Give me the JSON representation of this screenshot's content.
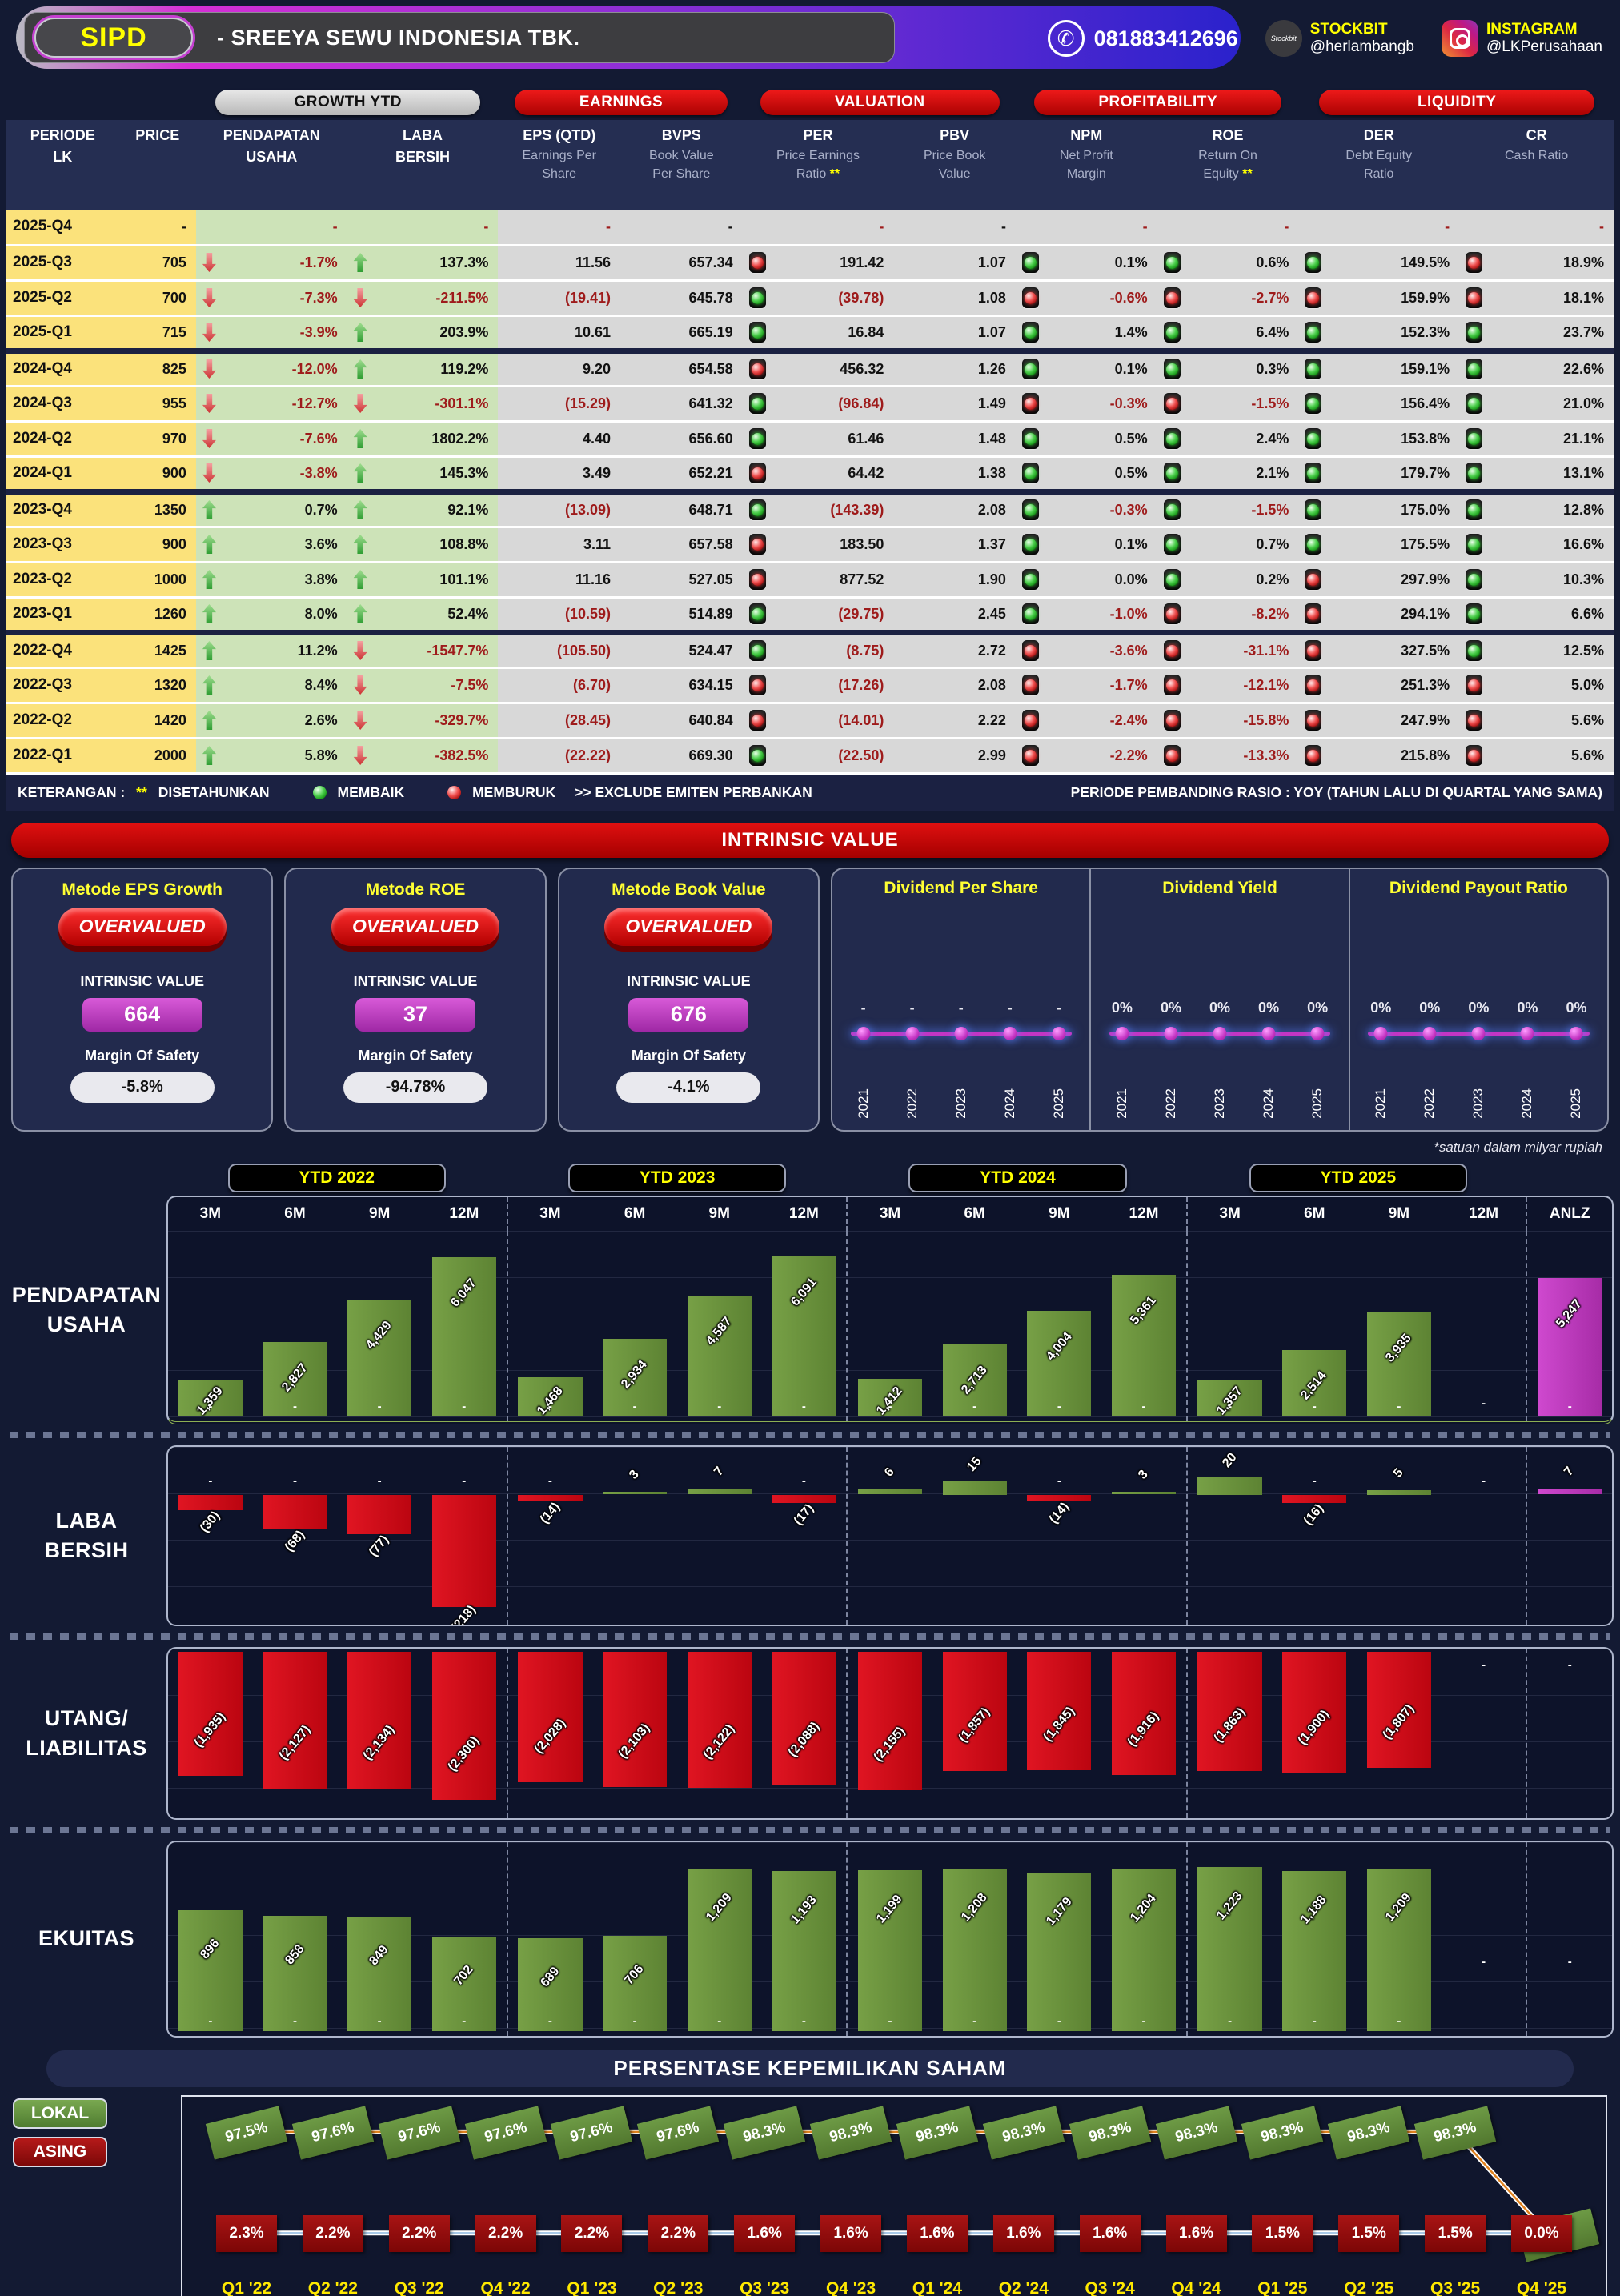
{
  "header": {
    "ticker": "SIPD",
    "company": "-  SREEYA SEWU INDONESIA TBK.",
    "whatsapp": "081883412696",
    "stockbit_icon_text": "Stockbit",
    "stockbit_label": "STOCKBIT",
    "stockbit_handle": "@herlambangb",
    "instagram_label": "INSTAGRAM",
    "instagram_handle": "@LKPerusahaan"
  },
  "colors": {
    "accent_red": "#cf0505",
    "accent_yellow": "#ffe900",
    "bar_green": "#6d8f3f",
    "bar_red": "#d40f1d",
    "bar_magenta": "#bf3fbf",
    "lokal_green": "#5d8f3d",
    "asing_red": "#9c1212",
    "light_green": "#2ecc2e",
    "light_red": "#e03030"
  },
  "table": {
    "groups": [
      "GROWTH YTD",
      "EARNINGS",
      "VALUATION",
      "PROFITABILITY",
      "LIQUIDITY"
    ],
    "columns": [
      {
        "lines": [
          "PERIODE",
          "LK"
        ]
      },
      {
        "lines": [
          "PRICE"
        ]
      },
      {
        "lines": [
          "PENDAPATAN",
          "USAHA"
        ]
      },
      {
        "lines": [
          "LABA",
          "BERSIH"
        ]
      },
      {
        "lines": [
          "EPS (QTD)",
          "Earnings Per",
          "Share"
        ]
      },
      {
        "lines": [
          "BVPS",
          "Book Value",
          "Per Share"
        ]
      },
      {
        "lines": [
          "PER",
          "Price Earnings",
          "Ratio **"
        ]
      },
      {
        "lines": [
          "PBV",
          "Price Book",
          "Value"
        ]
      },
      {
        "lines": [
          "NPM",
          "Net Profit",
          "Margin"
        ]
      },
      {
        "lines": [
          "ROE",
          "Return On",
          "Equity **"
        ]
      },
      {
        "lines": [
          "DER",
          "Debt Equity",
          "Ratio"
        ]
      },
      {
        "lines": [
          "CR",
          "Cash Ratio"
        ]
      }
    ],
    "rows": [
      {
        "period": "2025-Q4",
        "price": "-",
        "rev_dir": null,
        "rev": "-",
        "profit_dir": null,
        "profit": "-",
        "eps": "-",
        "bvps": "-",
        "per_light": null,
        "per": "-",
        "pbv": "-",
        "npm_light": null,
        "npm": "-",
        "roe_light": null,
        "roe": "-",
        "der_light": null,
        "der": "-",
        "cr_light": null,
        "cr": "-",
        "sep": false
      },
      {
        "period": "2025-Q3",
        "price": "705",
        "rev_dir": "down",
        "rev": "-1.7%",
        "profit_dir": "up",
        "profit": "137.3%",
        "eps": "11.56",
        "bvps": "657.34",
        "per_light": "red",
        "per": "191.42",
        "pbv": "1.07",
        "npm_light": "green",
        "npm": "0.1%",
        "roe_light": "green",
        "roe": "0.6%",
        "der_light": "green",
        "der": "149.5%",
        "cr_light": "red",
        "cr": "18.9%",
        "sep": false
      },
      {
        "period": "2025-Q2",
        "price": "700",
        "rev_dir": "down",
        "rev": "-7.3%",
        "profit_dir": "down",
        "profit": "-211.5%",
        "eps": "(19.41)",
        "bvps": "645.78",
        "per_light": "green",
        "per": "(39.78)",
        "pbv": "1.08",
        "npm_light": "red",
        "npm": "-0.6%",
        "roe_light": "red",
        "roe": "-2.7%",
        "der_light": "red",
        "der": "159.9%",
        "cr_light": "red",
        "cr": "18.1%",
        "sep": false
      },
      {
        "period": "2025-Q1",
        "price": "715",
        "rev_dir": "down",
        "rev": "-3.9%",
        "profit_dir": "up",
        "profit": "203.9%",
        "eps": "10.61",
        "bvps": "665.19",
        "per_light": "green",
        "per": "16.84",
        "pbv": "1.07",
        "npm_light": "green",
        "npm": "1.4%",
        "roe_light": "green",
        "roe": "6.4%",
        "der_light": "green",
        "der": "152.3%",
        "cr_light": "green",
        "cr": "23.7%",
        "sep": true
      },
      {
        "period": "2024-Q4",
        "price": "825",
        "rev_dir": "down",
        "rev": "-12.0%",
        "profit_dir": "up",
        "profit": "119.2%",
        "eps": "9.20",
        "bvps": "654.58",
        "per_light": "red",
        "per": "456.32",
        "pbv": "1.26",
        "npm_light": "green",
        "npm": "0.1%",
        "roe_light": "green",
        "roe": "0.3%",
        "der_light": "green",
        "der": "159.1%",
        "cr_light": "green",
        "cr": "22.6%",
        "sep": false
      },
      {
        "period": "2024-Q3",
        "price": "955",
        "rev_dir": "down",
        "rev": "-12.7%",
        "profit_dir": "down",
        "profit": "-301.1%",
        "eps": "(15.29)",
        "bvps": "641.32",
        "per_light": "green",
        "per": "(96.84)",
        "pbv": "1.49",
        "npm_light": "red",
        "npm": "-0.3%",
        "roe_light": "red",
        "roe": "-1.5%",
        "der_light": "green",
        "der": "156.4%",
        "cr_light": "green",
        "cr": "21.0%",
        "sep": false
      },
      {
        "period": "2024-Q2",
        "price": "970",
        "rev_dir": "down",
        "rev": "-7.6%",
        "profit_dir": "up",
        "profit": "1802.2%",
        "eps": "4.40",
        "bvps": "656.60",
        "per_light": "green",
        "per": "61.46",
        "pbv": "1.48",
        "npm_light": "green",
        "npm": "0.5%",
        "roe_light": "green",
        "roe": "2.4%",
        "der_light": "green",
        "der": "153.8%",
        "cr_light": "green",
        "cr": "21.1%",
        "sep": false
      },
      {
        "period": "2024-Q1",
        "price": "900",
        "rev_dir": "down",
        "rev": "-3.8%",
        "profit_dir": "up",
        "profit": "145.3%",
        "eps": "3.49",
        "bvps": "652.21",
        "per_light": "red",
        "per": "64.42",
        "pbv": "1.38",
        "npm_light": "green",
        "npm": "0.5%",
        "roe_light": "green",
        "roe": "2.1%",
        "der_light": "green",
        "der": "179.7%",
        "cr_light": "green",
        "cr": "13.1%",
        "sep": true
      },
      {
        "period": "2023-Q4",
        "price": "1350",
        "rev_dir": "up",
        "rev": "0.7%",
        "profit_dir": "up",
        "profit": "92.1%",
        "eps": "(13.09)",
        "bvps": "648.71",
        "per_light": "green",
        "per": "(143.39)",
        "pbv": "2.08",
        "npm_light": "green",
        "npm": "-0.3%",
        "roe_light": "green",
        "roe": "-1.5%",
        "der_light": "green",
        "der": "175.0%",
        "cr_light": "green",
        "cr": "12.8%",
        "sep": false
      },
      {
        "period": "2023-Q3",
        "price": "900",
        "rev_dir": "up",
        "rev": "3.6%",
        "profit_dir": "up",
        "profit": "108.8%",
        "eps": "3.11",
        "bvps": "657.58",
        "per_light": "red",
        "per": "183.50",
        "pbv": "1.37",
        "npm_light": "green",
        "npm": "0.1%",
        "roe_light": "green",
        "roe": "0.7%",
        "der_light": "green",
        "der": "175.5%",
        "cr_light": "green",
        "cr": "16.6%",
        "sep": false
      },
      {
        "period": "2023-Q2",
        "price": "1000",
        "rev_dir": "up",
        "rev": "3.8%",
        "profit_dir": "up",
        "profit": "101.1%",
        "eps": "11.16",
        "bvps": "527.05",
        "per_light": "red",
        "per": "877.52",
        "pbv": "1.90",
        "npm_light": "green",
        "npm": "0.0%",
        "roe_light": "green",
        "roe": "0.2%",
        "der_light": "red",
        "der": "297.9%",
        "cr_light": "green",
        "cr": "10.3%",
        "sep": false
      },
      {
        "period": "2023-Q1",
        "price": "1260",
        "rev_dir": "up",
        "rev": "8.0%",
        "profit_dir": "up",
        "profit": "52.4%",
        "eps": "(10.59)",
        "bvps": "514.89",
        "per_light": "green",
        "per": "(29.75)",
        "pbv": "2.45",
        "npm_light": "green",
        "npm": "-1.0%",
        "roe_light": "red",
        "roe": "-8.2%",
        "der_light": "red",
        "der": "294.1%",
        "cr_light": "green",
        "cr": "6.6%",
        "sep": true
      },
      {
        "period": "2022-Q4",
        "price": "1425",
        "rev_dir": "up",
        "rev": "11.2%",
        "profit_dir": "down",
        "profit": "-1547.7%",
        "eps": "(105.50)",
        "bvps": "524.47",
        "per_light": "green",
        "per": "(8.75)",
        "pbv": "2.72",
        "npm_light": "red",
        "npm": "-3.6%",
        "roe_light": "red",
        "roe": "-31.1%",
        "der_light": "red",
        "der": "327.5%",
        "cr_light": "green",
        "cr": "12.5%",
        "sep": false
      },
      {
        "period": "2022-Q3",
        "price": "1320",
        "rev_dir": "up",
        "rev": "8.4%",
        "profit_dir": "down",
        "profit": "-7.5%",
        "eps": "(6.70)",
        "bvps": "634.15",
        "per_light": "red",
        "per": "(17.26)",
        "pbv": "2.08",
        "npm_light": "red",
        "npm": "-1.7%",
        "roe_light": "red",
        "roe": "-12.1%",
        "der_light": "red",
        "der": "251.3%",
        "cr_light": "red",
        "cr": "5.0%",
        "sep": false
      },
      {
        "period": "2022-Q2",
        "price": "1420",
        "rev_dir": "up",
        "rev": "2.6%",
        "profit_dir": "down",
        "profit": "-329.7%",
        "eps": "(28.45)",
        "bvps": "640.84",
        "per_light": "red",
        "per": "(14.01)",
        "pbv": "2.22",
        "npm_light": "red",
        "npm": "-2.4%",
        "roe_light": "red",
        "roe": "-15.8%",
        "der_light": "red",
        "der": "247.9%",
        "cr_light": "red",
        "cr": "5.6%",
        "sep": false
      },
      {
        "period": "2022-Q1",
        "price": "2000",
        "rev_dir": "up",
        "rev": "5.8%",
        "profit_dir": "down",
        "profit": "-382.5%",
        "eps": "(22.22)",
        "bvps": "669.30",
        "per_light": "green",
        "per": "(22.50)",
        "pbv": "2.99",
        "npm_light": "red",
        "npm": "-2.2%",
        "roe_light": "red",
        "roe": "-13.3%",
        "der_light": "red",
        "der": "215.8%",
        "cr_light": "red",
        "cr": "5.6%",
        "sep": false
      }
    ],
    "legend": {
      "prefix": "KETERANGAN :",
      "stars": "**",
      "disetahunkan": "DISETAHUNKAN",
      "membaik": "MEMBAIK",
      "memburuk": "MEMBURUK",
      "exclude": ">> EXCLUDE EMITEN PERBANKAN",
      "period_note": "PERIODE PEMBANDING RASIO : YOY (TAHUN LALU DI QUARTAL YANG SAMA)"
    }
  },
  "intrinsic": {
    "banner": "INTRINSIC VALUE",
    "iv_label": "INTRINSIC VALUE",
    "mos_label": "Margin Of Safety",
    "methods": [
      {
        "title": "Metode EPS Growth",
        "status": "OVERVALUED",
        "value": "664",
        "mos": "-5.8%"
      },
      {
        "title": "Metode ROE",
        "status": "OVERVALUED",
        "value": "37",
        "mos": "-94.78%"
      },
      {
        "title": "Metode Book Value",
        "status": "OVERVALUED",
        "value": "676",
        "mos": "-4.1%"
      }
    ]
  },
  "dividends": [
    {
      "title": "Dividend Per Share",
      "labels": [
        "-",
        "-",
        "-",
        "-",
        "-"
      ],
      "years": [
        "2021",
        "2022",
        "2023",
        "2024",
        "2025"
      ]
    },
    {
      "title": "Dividend Yield",
      "labels": [
        "0%",
        "0%",
        "0%",
        "0%",
        "0%"
      ],
      "years": [
        "2021",
        "2022",
        "2023",
        "2024",
        "2025"
      ]
    },
    {
      "title": "Dividend Payout Ratio",
      "labels": [
        "0%",
        "0%",
        "0%",
        "0%",
        "0%"
      ],
      "years": [
        "2021",
        "2022",
        "2023",
        "2024",
        "2025"
      ]
    }
  ],
  "financial": {
    "note": "*satuan dalam milyar rupiah",
    "group_labels": [
      "YTD 2022",
      "YTD 2023",
      "YTD 2024",
      "YTD 2025"
    ],
    "col_labels": [
      "3M",
      "6M",
      "9M",
      "12M",
      "3M",
      "6M",
      "9M",
      "12M",
      "3M",
      "6M",
      "9M",
      "12M",
      "3M",
      "6M",
      "9M",
      "12M",
      "ANLZ"
    ]
  },
  "chart_data": [
    {
      "type": "bar",
      "title": "PENDAPATAN USAHA",
      "label_lines": [
        "PENDAPATAN",
        "USAHA"
      ],
      "unit": "milyar rupiah",
      "categories": [
        "2022-3M",
        "2022-6M",
        "2022-9M",
        "2022-12M",
        "2023-3M",
        "2023-6M",
        "2023-9M",
        "2023-12M",
        "2024-3M",
        "2024-6M",
        "2024-9M",
        "2024-12M",
        "2025-3M",
        "2025-6M",
        "2025-9M",
        "2025-12M",
        "ANLZ"
      ],
      "values": [
        1359,
        2827,
        4429,
        6047,
        1468,
        2934,
        4587,
        6091,
        1412,
        2713,
        4004,
        5361,
        1357,
        2514,
        3935,
        null,
        5247
      ]
    },
    {
      "type": "bar",
      "title": "LABA BERSIH",
      "label_lines": [
        "LABA",
        "BERSIH"
      ],
      "unit": "milyar rupiah",
      "categories": [
        "2022-3M",
        "2022-6M",
        "2022-9M",
        "2022-12M",
        "2023-3M",
        "2023-6M",
        "2023-9M",
        "2023-12M",
        "2024-3M",
        "2024-6M",
        "2024-9M",
        "2024-12M",
        "2025-3M",
        "2025-6M",
        "2025-9M",
        "2025-12M",
        "ANLZ"
      ],
      "values": [
        -30,
        -68,
        -77,
        -218,
        -14,
        3,
        7,
        -17,
        6,
        15,
        -14,
        3,
        20,
        -16,
        5,
        null,
        7
      ]
    },
    {
      "type": "bar",
      "title": "UTANG/LIABILITAS",
      "label_lines": [
        "UTANG/",
        "LIABILITAS"
      ],
      "unit": "milyar rupiah",
      "categories": [
        "2022-3M",
        "2022-6M",
        "2022-9M",
        "2022-12M",
        "2023-3M",
        "2023-6M",
        "2023-9M",
        "2023-12M",
        "2024-3M",
        "2024-6M",
        "2024-9M",
        "2024-12M",
        "2025-3M",
        "2025-6M",
        "2025-9M",
        "2025-12M",
        "ANLZ"
      ],
      "values": [
        -1935,
        -2127,
        -2134,
        -2300,
        -2028,
        -2103,
        -2122,
        -2088,
        -2155,
        -1857,
        -1845,
        -1916,
        -1863,
        -1900,
        -1807,
        null,
        null
      ]
    },
    {
      "type": "bar",
      "title": "EKUITAS",
      "label_lines": [
        "EKUITAS"
      ],
      "unit": "milyar rupiah",
      "categories": [
        "2022-3M",
        "2022-6M",
        "2022-9M",
        "2022-12M",
        "2023-3M",
        "2023-6M",
        "2023-9M",
        "2023-12M",
        "2024-3M",
        "2024-6M",
        "2024-9M",
        "2024-12M",
        "2025-3M",
        "2025-6M",
        "2025-9M",
        "2025-12M",
        "ANLZ"
      ],
      "values": [
        896,
        858,
        849,
        702,
        689,
        706,
        1209,
        1193,
        1199,
        1208,
        1179,
        1204,
        1223,
        1188,
        1209,
        null,
        null
      ]
    },
    {
      "type": "line",
      "title": "PERSENTASE KEPEMILIKAN SAHAM",
      "x": [
        "Q1 '22",
        "Q2 '22",
        "Q3 '22",
        "Q4 '22",
        "Q1 '23",
        "Q2 '23",
        "Q3 '23",
        "Q4 '23",
        "Q1 '24",
        "Q2 '24",
        "Q3 '24",
        "Q4 '24",
        "Q1 '25",
        "Q2 '25",
        "Q3 '25",
        "Q4 '25"
      ],
      "series": [
        {
          "name": "LOKAL",
          "values": [
            97.5,
            97.6,
            97.6,
            97.6,
            97.6,
            97.6,
            98.3,
            98.3,
            98.3,
            98.3,
            98.3,
            98.3,
            98.3,
            98.3,
            98.3,
            0.0
          ]
        },
        {
          "name": "ASING",
          "values": [
            2.3,
            2.2,
            2.2,
            2.2,
            2.2,
            2.2,
            1.6,
            1.6,
            1.6,
            1.6,
            1.6,
            1.6,
            1.5,
            1.5,
            1.5,
            0.0
          ]
        }
      ]
    }
  ],
  "ownership": {
    "title": "PERSENTASE KEPEMILIKAN SAHAM",
    "legend_lokal": "LOKAL",
    "legend_asing": "ASING"
  }
}
